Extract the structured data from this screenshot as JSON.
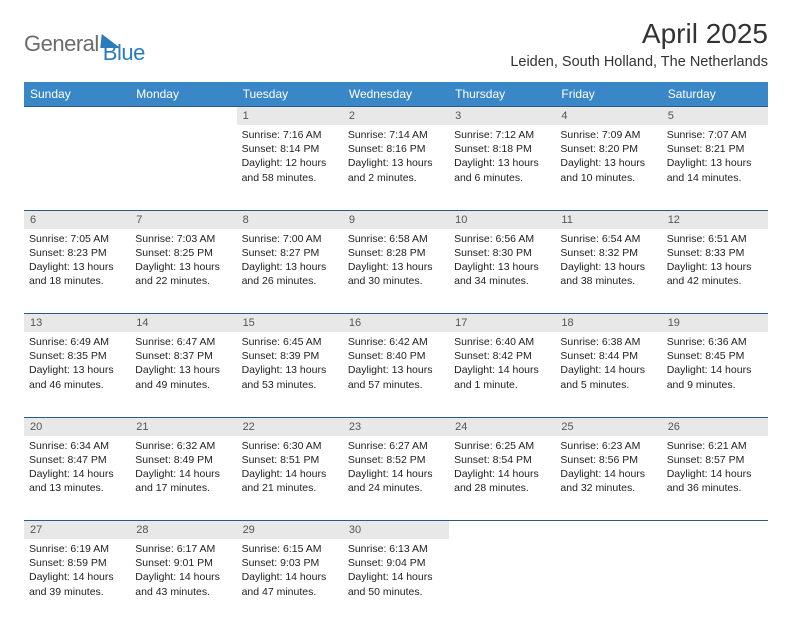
{
  "logo": {
    "text1": "General",
    "text2": "Blue"
  },
  "title": "April 2025",
  "subtitle": "Leiden, South Holland, The Netherlands",
  "header_bg": "#3a87c8",
  "header_fg": "#ffffff",
  "daynum_bg": "#e8e8e8",
  "rule_color": "#2b5a85",
  "day_headers": [
    "Sunday",
    "Monday",
    "Tuesday",
    "Wednesday",
    "Thursday",
    "Friday",
    "Saturday"
  ],
  "weeks": [
    [
      null,
      null,
      {
        "n": "1",
        "sr": "7:16 AM",
        "ss": "8:14 PM",
        "dl": "Daylight: 12 hours and 58 minutes."
      },
      {
        "n": "2",
        "sr": "7:14 AM",
        "ss": "8:16 PM",
        "dl": "Daylight: 13 hours and 2 minutes."
      },
      {
        "n": "3",
        "sr": "7:12 AM",
        "ss": "8:18 PM",
        "dl": "Daylight: 13 hours and 6 minutes."
      },
      {
        "n": "4",
        "sr": "7:09 AM",
        "ss": "8:20 PM",
        "dl": "Daylight: 13 hours and 10 minutes."
      },
      {
        "n": "5",
        "sr": "7:07 AM",
        "ss": "8:21 PM",
        "dl": "Daylight: 13 hours and 14 minutes."
      }
    ],
    [
      {
        "n": "6",
        "sr": "7:05 AM",
        "ss": "8:23 PM",
        "dl": "Daylight: 13 hours and 18 minutes."
      },
      {
        "n": "7",
        "sr": "7:03 AM",
        "ss": "8:25 PM",
        "dl": "Daylight: 13 hours and 22 minutes."
      },
      {
        "n": "8",
        "sr": "7:00 AM",
        "ss": "8:27 PM",
        "dl": "Daylight: 13 hours and 26 minutes."
      },
      {
        "n": "9",
        "sr": "6:58 AM",
        "ss": "8:28 PM",
        "dl": "Daylight: 13 hours and 30 minutes."
      },
      {
        "n": "10",
        "sr": "6:56 AM",
        "ss": "8:30 PM",
        "dl": "Daylight: 13 hours and 34 minutes."
      },
      {
        "n": "11",
        "sr": "6:54 AM",
        "ss": "8:32 PM",
        "dl": "Daylight: 13 hours and 38 minutes."
      },
      {
        "n": "12",
        "sr": "6:51 AM",
        "ss": "8:33 PM",
        "dl": "Daylight: 13 hours and 42 minutes."
      }
    ],
    [
      {
        "n": "13",
        "sr": "6:49 AM",
        "ss": "8:35 PM",
        "dl": "Daylight: 13 hours and 46 minutes."
      },
      {
        "n": "14",
        "sr": "6:47 AM",
        "ss": "8:37 PM",
        "dl": "Daylight: 13 hours and 49 minutes."
      },
      {
        "n": "15",
        "sr": "6:45 AM",
        "ss": "8:39 PM",
        "dl": "Daylight: 13 hours and 53 minutes."
      },
      {
        "n": "16",
        "sr": "6:42 AM",
        "ss": "8:40 PM",
        "dl": "Daylight: 13 hours and 57 minutes."
      },
      {
        "n": "17",
        "sr": "6:40 AM",
        "ss": "8:42 PM",
        "dl": "Daylight: 14 hours and 1 minute."
      },
      {
        "n": "18",
        "sr": "6:38 AM",
        "ss": "8:44 PM",
        "dl": "Daylight: 14 hours and 5 minutes."
      },
      {
        "n": "19",
        "sr": "6:36 AM",
        "ss": "8:45 PM",
        "dl": "Daylight: 14 hours and 9 minutes."
      }
    ],
    [
      {
        "n": "20",
        "sr": "6:34 AM",
        "ss": "8:47 PM",
        "dl": "Daylight: 14 hours and 13 minutes."
      },
      {
        "n": "21",
        "sr": "6:32 AM",
        "ss": "8:49 PM",
        "dl": "Daylight: 14 hours and 17 minutes."
      },
      {
        "n": "22",
        "sr": "6:30 AM",
        "ss": "8:51 PM",
        "dl": "Daylight: 14 hours and 21 minutes."
      },
      {
        "n": "23",
        "sr": "6:27 AM",
        "ss": "8:52 PM",
        "dl": "Daylight: 14 hours and 24 minutes."
      },
      {
        "n": "24",
        "sr": "6:25 AM",
        "ss": "8:54 PM",
        "dl": "Daylight: 14 hours and 28 minutes."
      },
      {
        "n": "25",
        "sr": "6:23 AM",
        "ss": "8:56 PM",
        "dl": "Daylight: 14 hours and 32 minutes."
      },
      {
        "n": "26",
        "sr": "6:21 AM",
        "ss": "8:57 PM",
        "dl": "Daylight: 14 hours and 36 minutes."
      }
    ],
    [
      {
        "n": "27",
        "sr": "6:19 AM",
        "ss": "8:59 PM",
        "dl": "Daylight: 14 hours and 39 minutes."
      },
      {
        "n": "28",
        "sr": "6:17 AM",
        "ss": "9:01 PM",
        "dl": "Daylight: 14 hours and 43 minutes."
      },
      {
        "n": "29",
        "sr": "6:15 AM",
        "ss": "9:03 PM",
        "dl": "Daylight: 14 hours and 47 minutes."
      },
      {
        "n": "30",
        "sr": "6:13 AM",
        "ss": "9:04 PM",
        "dl": "Daylight: 14 hours and 50 minutes."
      },
      null,
      null,
      null
    ]
  ]
}
